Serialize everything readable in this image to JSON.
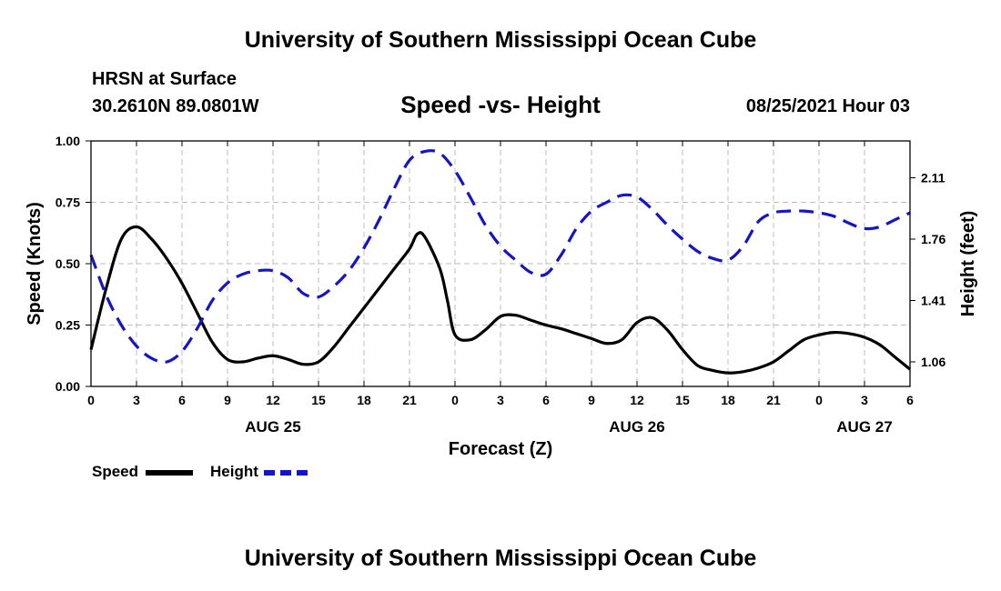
{
  "header": {
    "title": "University of Southern Mississippi Ocean Cube",
    "station": "HRSN at Surface",
    "coords": "30.2610N  89.0801W",
    "subtitle": "Speed -vs- Height",
    "datetime": "08/25/2021 Hour 03"
  },
  "footer": {
    "title": "University of Southern Mississippi Ocean Cube"
  },
  "legend": {
    "speed_label": "Speed",
    "height_label": "Height"
  },
  "chart_data": {
    "type": "line",
    "title": "Speed -vs- Height",
    "xlabel": "Forecast (Z)",
    "ylabel": "Speed (Knots)",
    "y2label": "Height (feet)",
    "xlim": [
      0,
      54
    ],
    "ylim": [
      0,
      1.0
    ],
    "y2lim": [
      0.92,
      2.32
    ],
    "grid": true,
    "legend_position": "bottom-left",
    "x_ticks": [
      0,
      3,
      6,
      9,
      12,
      15,
      18,
      21,
      24,
      27,
      30,
      33,
      36,
      39,
      42,
      45,
      48,
      51,
      54
    ],
    "x_tick_labels": [
      "0",
      "3",
      "6",
      "9",
      "12",
      "15",
      "18",
      "21",
      "0",
      "3",
      "6",
      "9",
      "12",
      "15",
      "18",
      "21",
      "0",
      "3",
      "6"
    ],
    "y_ticks": [
      0.0,
      0.25,
      0.5,
      0.75,
      1.0
    ],
    "y_tick_labels": [
      "0.00",
      "0.25",
      "0.50",
      "0.75",
      "1.00"
    ],
    "y2_ticks": [
      1.06,
      1.41,
      1.76,
      2.11
    ],
    "y2_tick_labels": [
      "1.06",
      "1.41",
      "1.76",
      "2.11"
    ],
    "day_labels": [
      {
        "x": 12,
        "label": "AUG 25"
      },
      {
        "x": 36,
        "label": "AUG 26"
      },
      {
        "x": 51,
        "label": "AUG 27"
      }
    ],
    "series": [
      {
        "name": "Speed",
        "axis": "left",
        "color": "#000000",
        "style": "solid",
        "x": [
          0,
          1,
          2,
          3,
          4,
          5,
          6,
          7,
          8,
          9,
          10,
          11,
          12,
          13,
          14,
          15,
          16,
          17,
          18,
          19,
          20,
          21,
          21.5,
          22,
          23,
          23.5,
          24,
          25,
          26,
          27,
          28,
          29,
          30,
          31,
          32,
          33,
          34,
          35,
          36,
          37,
          38,
          39,
          40,
          41,
          42,
          43,
          44,
          45,
          46,
          47,
          48,
          49,
          50,
          51,
          52,
          53,
          54
        ],
        "values": [
          0.15,
          0.4,
          0.6,
          0.65,
          0.6,
          0.52,
          0.42,
          0.3,
          0.18,
          0.11,
          0.1,
          0.115,
          0.125,
          0.11,
          0.09,
          0.1,
          0.16,
          0.24,
          0.32,
          0.4,
          0.48,
          0.56,
          0.62,
          0.61,
          0.48,
          0.35,
          0.21,
          0.19,
          0.23,
          0.285,
          0.29,
          0.27,
          0.25,
          0.235,
          0.215,
          0.195,
          0.175,
          0.19,
          0.26,
          0.28,
          0.23,
          0.15,
          0.085,
          0.065,
          0.055,
          0.06,
          0.075,
          0.1,
          0.145,
          0.19,
          0.21,
          0.22,
          0.215,
          0.2,
          0.17,
          0.12,
          0.07
        ]
      },
      {
        "name": "Height",
        "axis": "right",
        "color": "#1414c8",
        "style": "dashed",
        "x": [
          0,
          1,
          2,
          3,
          4,
          5,
          6,
          7,
          8,
          9,
          10,
          11,
          12,
          13,
          14,
          15,
          16,
          17,
          18,
          19,
          20,
          21,
          22,
          23,
          24,
          25,
          26,
          27,
          28,
          29,
          30,
          31,
          32,
          33,
          34,
          35,
          36,
          37,
          38,
          39,
          40,
          41,
          42,
          43,
          44,
          45,
          46,
          47,
          48,
          49,
          50,
          51,
          52,
          53,
          54
        ],
        "values": [
          1.67,
          1.44,
          1.27,
          1.15,
          1.08,
          1.06,
          1.12,
          1.25,
          1.41,
          1.51,
          1.56,
          1.58,
          1.58,
          1.54,
          1.45,
          1.43,
          1.49,
          1.58,
          1.71,
          1.87,
          2.05,
          2.21,
          2.26,
          2.25,
          2.15,
          2.0,
          1.84,
          1.72,
          1.64,
          1.57,
          1.56,
          1.67,
          1.82,
          1.92,
          1.97,
          2.01,
          2.0,
          1.93,
          1.84,
          1.76,
          1.69,
          1.65,
          1.64,
          1.72,
          1.86,
          1.91,
          1.92,
          1.92,
          1.91,
          1.89,
          1.85,
          1.82,
          1.83,
          1.87,
          1.91
        ]
      }
    ]
  }
}
